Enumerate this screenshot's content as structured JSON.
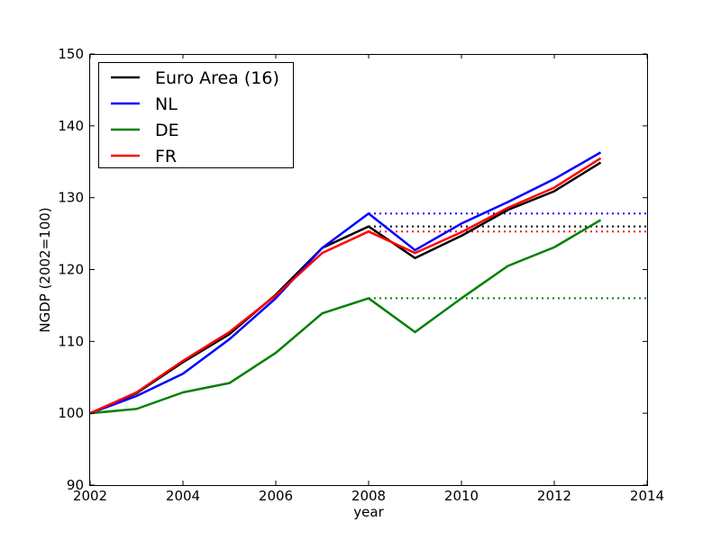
{
  "chart_data": {
    "type": "line",
    "title": "",
    "xlabel": "year",
    "ylabel": "NGDP (2002=100)",
    "xlim": [
      2002,
      2014
    ],
    "ylim": [
      90,
      150
    ],
    "xticks": [
      2002,
      2004,
      2006,
      2008,
      2010,
      2012,
      2014
    ],
    "yticks": [
      90,
      100,
      110,
      120,
      130,
      140,
      150
    ],
    "grid": false,
    "legend_position": "top-left",
    "x": [
      2002,
      2003,
      2004,
      2005,
      2006,
      2007,
      2008,
      2009,
      2010,
      2011,
      2012,
      2013
    ],
    "series": [
      {
        "name": "Euro Area (16)",
        "color": "#000000",
        "values": [
          100,
          102.8,
          107.1,
          111.0,
          116.5,
          123.0,
          126.0,
          121.6,
          124.7,
          128.3,
          130.9,
          134.9
        ]
      },
      {
        "name": "NL",
        "color": "#0000ff",
        "values": [
          100,
          102.4,
          105.5,
          110.3,
          116.0,
          123.0,
          127.8,
          122.7,
          126.4,
          129.4,
          132.6,
          136.3
        ]
      },
      {
        "name": "DE",
        "color": "#008000",
        "values": [
          100,
          100.6,
          102.9,
          104.2,
          108.4,
          113.9,
          116.0,
          111.3,
          116.0,
          120.5,
          123.1,
          126.9
        ]
      },
      {
        "name": "FR",
        "color": "#ff0000",
        "values": [
          100,
          102.9,
          107.3,
          111.3,
          116.4,
          122.3,
          125.3,
          122.3,
          125.2,
          128.6,
          131.4,
          135.5
        ]
      }
    ],
    "reference_lines": [
      {
        "series": "NL",
        "color": "#0000ff",
        "y": 127.8,
        "x_from": 2008,
        "x_to": 2014,
        "style": "dotted"
      },
      {
        "series": "Euro Area (16)",
        "color": "#000000",
        "y": 126.0,
        "x_from": 2008,
        "x_to": 2014,
        "style": "dotted"
      },
      {
        "series": "FR",
        "color": "#ff0000",
        "y": 125.3,
        "x_from": 2008,
        "x_to": 2014,
        "style": "dotted"
      },
      {
        "series": "DE",
        "color": "#008000",
        "y": 116.0,
        "x_from": 2008,
        "x_to": 2014,
        "style": "dotted"
      }
    ]
  }
}
